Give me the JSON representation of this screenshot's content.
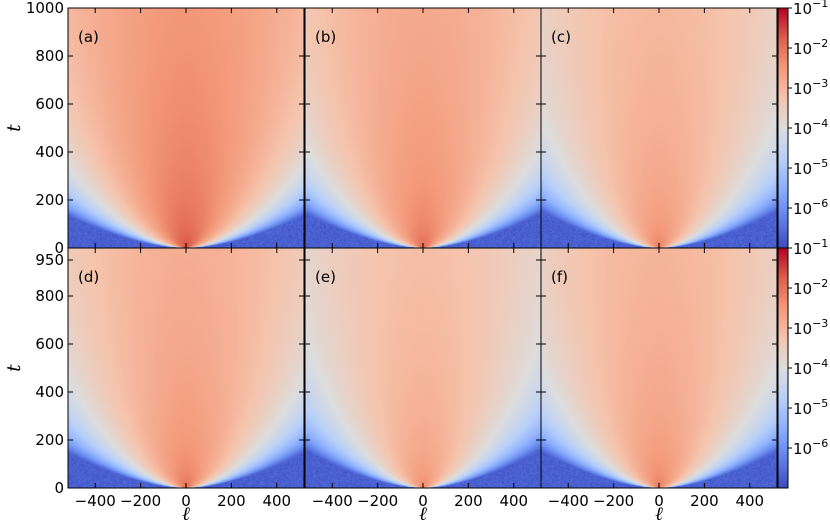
{
  "chart_data": {
    "type": "heatmap",
    "layout": "2x3 panel grid with shared color bars per row",
    "xlabel": "ℓ",
    "ylabel": "t",
    "x_ticks": [
      -400,
      -200,
      0,
      200,
      400
    ],
    "x_tick_labels": [
      "−400",
      "−200",
      "0",
      "200",
      "400"
    ],
    "xlim": [
      -520,
      520
    ],
    "colormap": "coolwarm",
    "colorscale": "log",
    "rows": [
      {
        "ylim": [
          0,
          1000
        ],
        "y_ticks": [
          0,
          200,
          400,
          600,
          800,
          1000
        ],
        "y_tick_labels": [
          "0",
          "200",
          "400",
          "600",
          "800",
          "1000"
        ],
        "colorbar": {
          "range": [
            1e-07,
            0.1
          ],
          "ticks": [
            0.1,
            0.01,
            0.001,
            0.0001,
            1e-05,
            1e-06
          ],
          "tick_labels": [
            {
              "base": "10",
              "exp": "−1"
            },
            {
              "base": "10",
              "exp": "−2"
            },
            {
              "base": "10",
              "exp": "−3"
            },
            {
              "base": "10",
              "exp": "−4"
            },
            {
              "base": "10",
              "exp": "−5"
            },
            {
              "base": "10",
              "exp": "−6"
            }
          ]
        },
        "panels": [
          {
            "label": "(a)",
            "peak": 0.03
          },
          {
            "label": "(b)",
            "peak": 0.015
          },
          {
            "label": "(c)",
            "peak": 0.008
          }
        ]
      },
      {
        "ylim": [
          0,
          1000
        ],
        "y_ticks": [
          0,
          200,
          400,
          600,
          800,
          950
        ],
        "y_tick_labels": [
          "0",
          "200",
          "400",
          "600",
          "800",
          "950"
        ],
        "colorbar": {
          "range": [
            1e-07,
            0.1
          ],
          "ticks": [
            0.1,
            0.01,
            0.001,
            0.0001,
            1e-05,
            1e-06
          ],
          "tick_labels": [
            {
              "base": "10",
              "exp": "−1"
            },
            {
              "base": "10",
              "exp": "−2"
            },
            {
              "base": "10",
              "exp": "−3"
            },
            {
              "base": "10",
              "exp": "−4"
            },
            {
              "base": "10",
              "exp": "−5"
            },
            {
              "base": "10",
              "exp": "−6"
            }
          ]
        },
        "panels": [
          {
            "label": "(d)",
            "peak": 0.012
          },
          {
            "label": "(e)",
            "peak": 0.006
          },
          {
            "label": "(f)",
            "peak": 0.009
          }
        ]
      }
    ]
  }
}
